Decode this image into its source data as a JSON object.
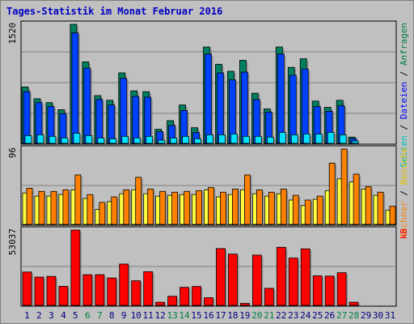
{
  "title": "Tages-Statistik im Monat Februar 2016",
  "panels": {
    "top": {
      "ymax_label": "1520",
      "legend": [
        {
          "text": "Seiten",
          "color": "#00c0c0"
        },
        {
          "text": " / ",
          "color": "#000000"
        },
        {
          "text": "Dateien",
          "color": "#0000ff"
        },
        {
          "text": " / ",
          "color": "#000000"
        },
        {
          "text": "Anfragen",
          "color": "#008040"
        }
      ]
    },
    "middle": {
      "ymax_label": "96",
      "legend": [
        {
          "text": "Rechner",
          "color": "#ff8000"
        },
        {
          "text": " / ",
          "color": "#000000"
        },
        {
          "text": "Besuche",
          "color": "#e0c000"
        }
      ]
    },
    "bottom": {
      "ymax_label": "53037",
      "legend": [
        {
          "text": "kB",
          "color": "#ff0000"
        }
      ]
    }
  },
  "colors": {
    "anfragen": "#008060",
    "dateien": "#0040ff",
    "seiten": "#00e0ff",
    "rechner": "#ff8000",
    "besuche": "#ffff40",
    "kb": "#ff0000",
    "weekend_label": "#008040",
    "day_label": "#000080"
  },
  "chart_data": [
    {
      "type": "bar",
      "categories": [
        "1",
        "2",
        "3",
        "4",
        "5",
        "6",
        "7",
        "8",
        "9",
        "10",
        "11",
        "12",
        "13",
        "14",
        "15",
        "16",
        "17",
        "18",
        "19",
        "20",
        "21",
        "22",
        "23",
        "24",
        "25",
        "26",
        "27",
        "28",
        "29",
        "30",
        "31"
      ],
      "ylim": [
        0,
        1520
      ],
      "series": [
        {
          "name": "Anfragen",
          "values": [
            720,
            570,
            520,
            430,
            1520,
            1040,
            610,
            550,
            900,
            670,
            660,
            180,
            290,
            490,
            200,
            1230,
            1010,
            920,
            1060,
            640,
            440,
            1230,
            970,
            1080,
            540,
            460,
            550,
            80,
            0,
            0,
            0
          ]
        },
        {
          "name": "Dateien",
          "values": [
            660,
            520,
            470,
            380,
            1410,
            960,
            560,
            490,
            830,
            600,
            590,
            150,
            230,
            420,
            140,
            1140,
            900,
            810,
            910,
            560,
            400,
            1140,
            870,
            950,
            470,
            410,
            480,
            60,
            0,
            0,
            0
          ]
        },
        {
          "name": "Seiten",
          "values": [
            100,
            110,
            90,
            70,
            130,
            100,
            70,
            60,
            90,
            70,
            90,
            40,
            70,
            90,
            60,
            110,
            110,
            120,
            90,
            90,
            80,
            140,
            110,
            120,
            120,
            140,
            110,
            30,
            0,
            0,
            0
          ]
        }
      ]
    },
    {
      "type": "bar",
      "categories": [
        "1",
        "2",
        "3",
        "4",
        "5",
        "6",
        "7",
        "8",
        "9",
        "10",
        "11",
        "12",
        "13",
        "14",
        "15",
        "16",
        "17",
        "18",
        "19",
        "20",
        "21",
        "22",
        "23",
        "24",
        "25",
        "26",
        "27",
        "28",
        "29",
        "30",
        "31"
      ],
      "ylim": [
        0,
        96
      ],
      "series": [
        {
          "name": "Rechner",
          "values": [
            46,
            42,
            42,
            44,
            63,
            38,
            28,
            35,
            44,
            60,
            45,
            42,
            41,
            42,
            43,
            47,
            41,
            45,
            63,
            44,
            41,
            45,
            37,
            31,
            36,
            78,
            96,
            64,
            48,
            41,
            23
          ]
        },
        {
          "name": "Besuche",
          "values": [
            40,
            36,
            36,
            38,
            44,
            33,
            19,
            29,
            39,
            44,
            39,
            36,
            37,
            38,
            38,
            44,
            35,
            38,
            44,
            39,
            36,
            39,
            31,
            24,
            32,
            43,
            58,
            54,
            45,
            37,
            18
          ]
        }
      ]
    },
    {
      "type": "bar",
      "categories": [
        "1",
        "2",
        "3",
        "4",
        "5",
        "6",
        "7",
        "8",
        "9",
        "10",
        "11",
        "12",
        "13",
        "14",
        "15",
        "16",
        "17",
        "18",
        "19",
        "20",
        "21",
        "22",
        "23",
        "24",
        "25",
        "26",
        "27",
        "28",
        "29",
        "30",
        "31"
      ],
      "ylim": [
        0,
        53037
      ],
      "series": [
        {
          "name": "kB",
          "values": [
            23500,
            19900,
            20400,
            13400,
            53037,
            21600,
            21600,
            19300,
            29100,
            17300,
            23700,
            2200,
            6400,
            12700,
            13300,
            5400,
            40000,
            36100,
            1400,
            35400,
            12000,
            40900,
            33300,
            39800,
            20800,
            20600,
            23000,
            2200,
            0,
            0,
            0
          ]
        }
      ]
    }
  ]
}
